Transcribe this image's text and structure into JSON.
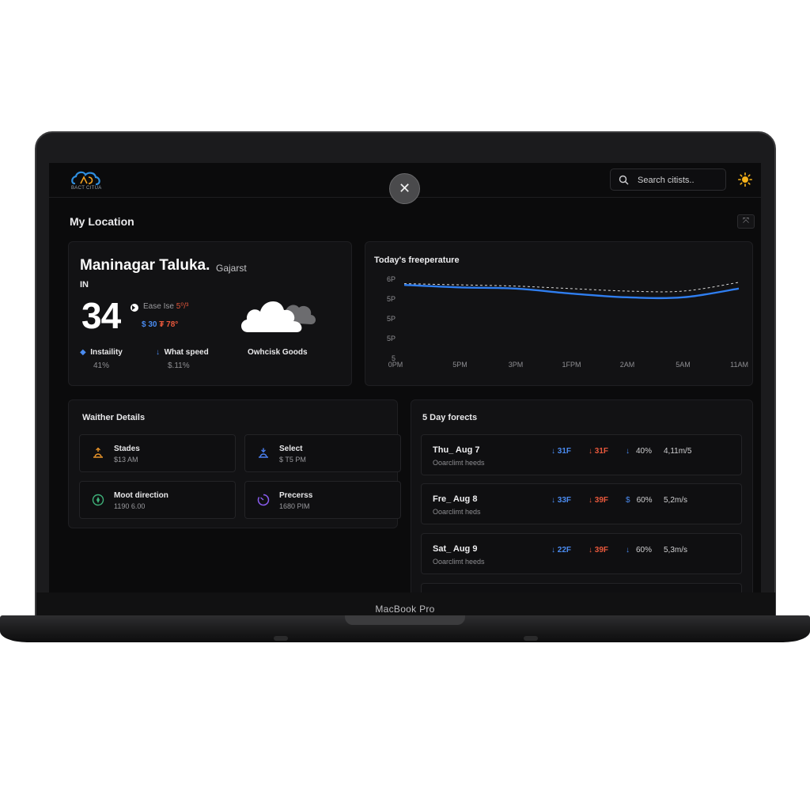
{
  "device": {
    "label": "MacBook Pro"
  },
  "header": {
    "logo_text": "BACT CITUA",
    "search_placeholder": "Search citists..",
    "close_symbol": "✕"
  },
  "page": {
    "title": "My Location",
    "pin_symbol": "⤧"
  },
  "location": {
    "city": "Maninagar Taluka.",
    "state": "Gajarst",
    "country": "IN",
    "temp": "34",
    "feels_label": "Ease Ise ",
    "feels_value": "5⁰/³",
    "low": "30",
    "high": "78°",
    "humidity_label": "Instaility",
    "humidity_value": "41%",
    "wind_label": "What speed",
    "wind_value": "$.11%",
    "condition": "Owhcisk Goods"
  },
  "chart_data": {
    "type": "line",
    "title": "Today's freeperature",
    "x": [
      "0PM",
      "5PM",
      "3PM",
      "1FPM",
      "2AM",
      "5AM",
      "11AM"
    ],
    "y_ticks": [
      "6P",
      "5P",
      "5P",
      "5P",
      "5"
    ],
    "series": [
      {
        "values": [
          6.1,
          5.9,
          5.8,
          5.4,
          5.1,
          5.1,
          5.8
        ],
        "color": "#2f7ef0",
        "style": "solid"
      },
      {
        "values": [
          6.2,
          6.1,
          6.0,
          5.8,
          5.6,
          5.6,
          6.3
        ],
        "color": "#d8d8d8",
        "style": "dashed"
      }
    ],
    "ylim": [
      0,
      7
    ]
  },
  "details": {
    "title": "Waither Details",
    "tiles": [
      {
        "label": "Stades",
        "value": "$13 AM",
        "icon": "sunrise-icon",
        "color": "#e6932a"
      },
      {
        "label": "Select",
        "value": "$ T5 PM",
        "icon": "sunset-icon",
        "color": "#4a7ff0"
      },
      {
        "label": "Moot direction",
        "value": "1190 6.00",
        "icon": "compass-icon",
        "color": "#3fb27a"
      },
      {
        "label": "Precerss",
        "value": "1680 PIM",
        "icon": "gauge-icon",
        "color": "#8a5cf0"
      }
    ]
  },
  "forecast": {
    "title": "5 Day forects",
    "rows": [
      {
        "day": "Thu_ Aug 7",
        "desc": "Ooarclimt heeds",
        "lo": "31F",
        "hi": "31F",
        "rain_icon": "↓",
        "rain": "40%",
        "wind": "4,11m/5"
      },
      {
        "day": "Fre_ Aug 8",
        "desc": "Ooarclimt heds",
        "lo": "33F",
        "hi": "39F",
        "rain_icon": "$",
        "rain": "60%",
        "wind": "5,2m/s"
      },
      {
        "day": "Sat_ Aug 9",
        "desc": "Ooarclimt heeds",
        "lo": "22F",
        "hi": "39F",
        "rain_icon": "↓",
        "rain": "60%",
        "wind": "5,3m/s"
      }
    ]
  }
}
